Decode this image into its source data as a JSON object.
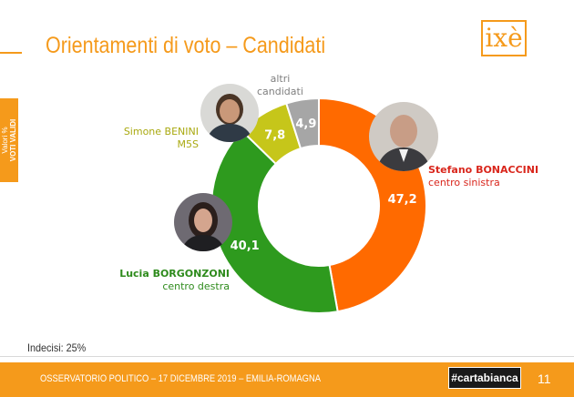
{
  "title": "Orientamenti di voto – Candidati",
  "logo_text": "ixè",
  "side_label": {
    "line1": "Valori %",
    "line2": "VOTI VALIDI"
  },
  "undecided": "Indecisi: 25%",
  "footer": {
    "text": "OSSERVATORIO POLITICO – 17 DICEMBRE 2019 – EMILIA-ROMAGNA",
    "badge": "#cartabianca",
    "page": "11"
  },
  "colors": {
    "accent": "#f59a1b",
    "bonaccini": "#ff6a00",
    "borgonzoni": "#2e9a1e",
    "benini": "#c6c61a",
    "altri": "#a6a6a6"
  },
  "chart_data": {
    "type": "pie",
    "variant": "donut",
    "slices": [
      {
        "label": "Stefano BONACCINI",
        "sublabel": "centro sinistra",
        "value": 47.2,
        "value_label": "47,2",
        "color": "#ff6a00"
      },
      {
        "label": "Lucia BORGONZONI",
        "sublabel": "centro destra",
        "value": 40.1,
        "value_label": "40,1",
        "color": "#2e9a1e"
      },
      {
        "label": "Simone BENINI",
        "sublabel": "M5S",
        "value": 7.8,
        "value_label": "7,8",
        "color": "#c6c61a"
      },
      {
        "label": "altri",
        "sublabel": "candidati",
        "value": 4.9,
        "value_label": "4,9",
        "color": "#a6a6a6"
      }
    ]
  }
}
